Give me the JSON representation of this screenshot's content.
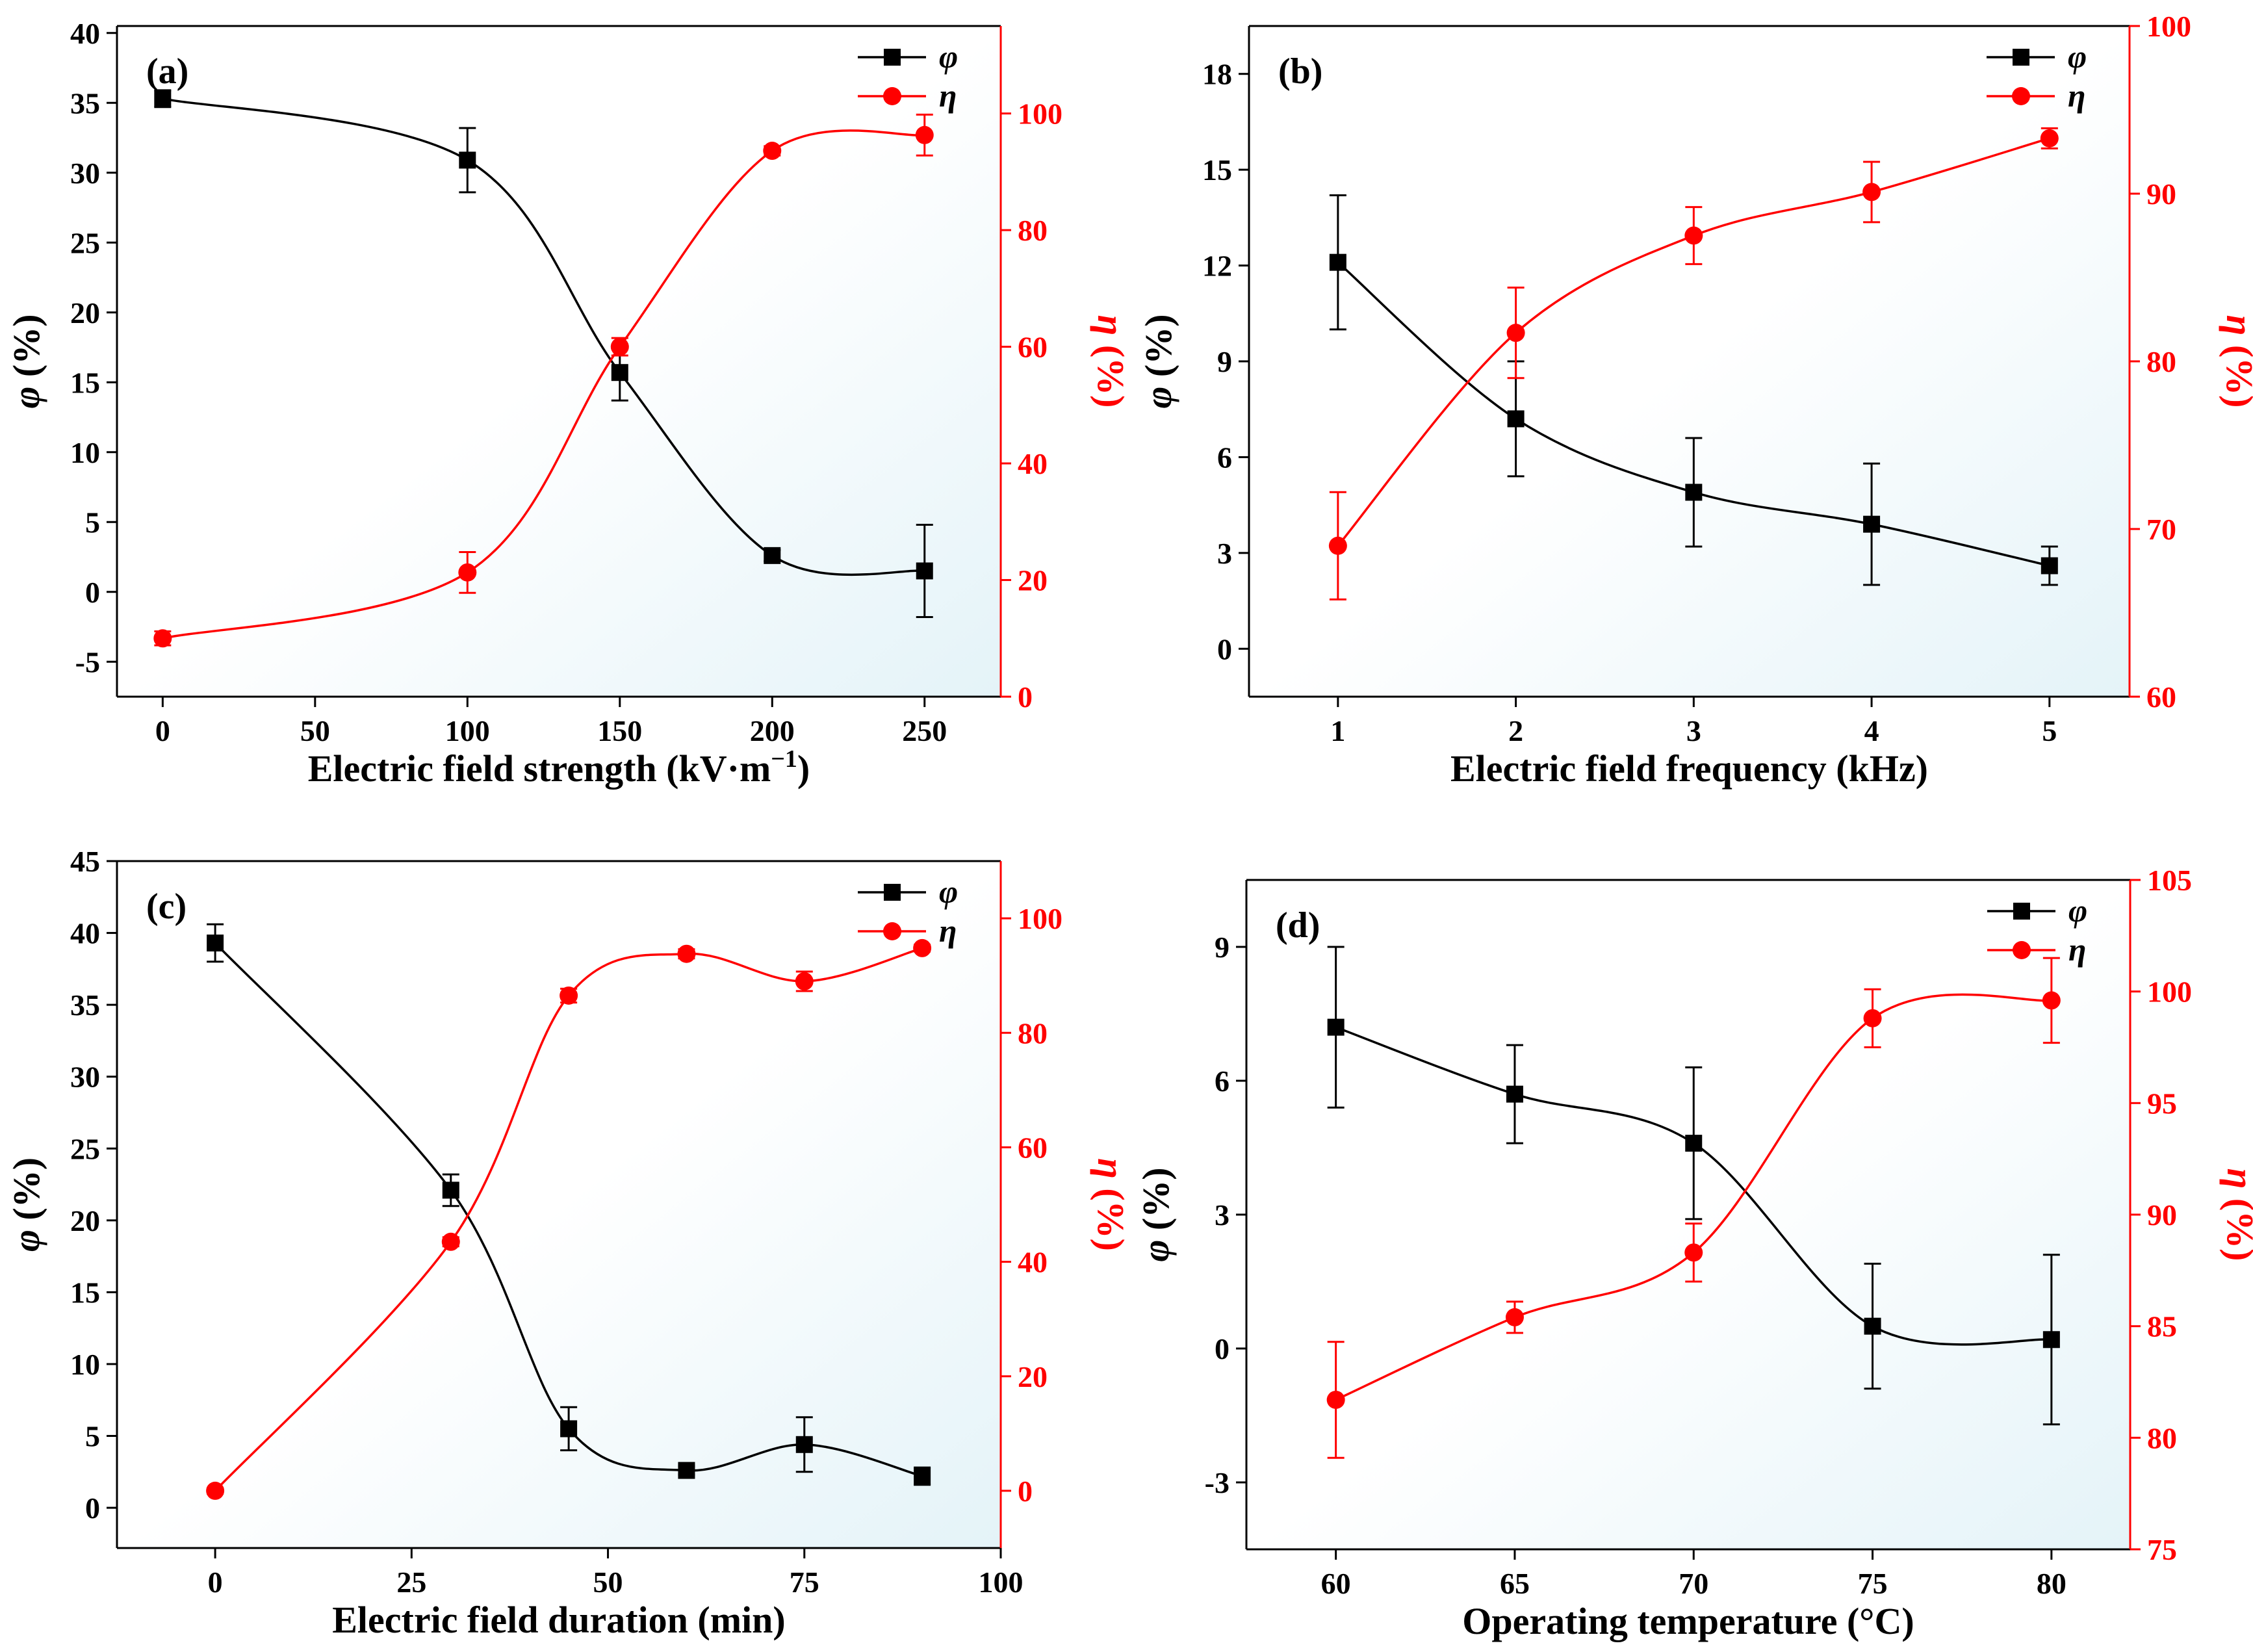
{
  "colors": {
    "phi": "#000000",
    "eta": "#ff0000",
    "background_tint": "#e4f3f8"
  },
  "chart_data": [
    {
      "type": "line",
      "panel": "(a)",
      "xlabel": "Electric field strength (kV·m",
      "xlabel_sup": "−1",
      "xlabel_close": ")",
      "ylabel_left": {
        "symbol": "φ",
        "unit": " (%)"
      },
      "ylabel_right": {
        "symbol": "η",
        "unit": " (%)"
      },
      "xlim": [
        -15,
        275
      ],
      "xticks": [
        0,
        50,
        100,
        150,
        200,
        250
      ],
      "ylim_left": [
        -7.5,
        40.5
      ],
      "yticks_left": [
        -5,
        0,
        5,
        10,
        15,
        20,
        25,
        30,
        35,
        40
      ],
      "ylim_right": [
        0,
        115
      ],
      "yticks_right": [
        0,
        20,
        40,
        60,
        80,
        100
      ],
      "series": [
        {
          "name": "φ",
          "axis": "left",
          "marker": "square",
          "x": [
            0,
            100,
            150,
            200,
            250
          ],
          "values": [
            35.3,
            30.9,
            15.7,
            2.6,
            1.5
          ],
          "errors": [
            0.6,
            2.3,
            2.0,
            0.4,
            3.3
          ]
        },
        {
          "name": "η",
          "axis": "right",
          "marker": "circle",
          "x": [
            0,
            100,
            150,
            200,
            250
          ],
          "values": [
            10.0,
            21.3,
            60.0,
            93.6,
            96.3
          ],
          "errors": [
            1.2,
            3.5,
            1.5,
            0.8,
            3.5
          ]
        }
      ]
    },
    {
      "type": "line",
      "panel": "(b)",
      "xlabel": "Electric field frequency (kHz)",
      "ylabel_left": {
        "symbol": "φ",
        "unit": " (%)"
      },
      "ylabel_right": {
        "symbol": "η",
        "unit": " (%)"
      },
      "xlim": [
        0.5,
        5.45
      ],
      "xticks": [
        1,
        2,
        3,
        4,
        5
      ],
      "ylim_left": [
        -1.5,
        19.5
      ],
      "yticks_left": [
        0,
        3,
        6,
        9,
        12,
        15,
        18
      ],
      "ylim_right": [
        60,
        100
      ],
      "yticks_right": [
        60,
        70,
        80,
        90,
        100
      ],
      "series": [
        {
          "name": "φ",
          "axis": "left",
          "marker": "square",
          "x": [
            1,
            2,
            3,
            4,
            5
          ],
          "values": [
            12.1,
            7.2,
            4.9,
            3.9,
            2.6
          ],
          "errors": [
            2.1,
            1.8,
            1.7,
            1.9,
            0.6
          ]
        },
        {
          "name": "η",
          "axis": "right",
          "marker": "circle",
          "x": [
            1,
            2,
            3,
            4,
            5
          ],
          "values": [
            69.0,
            81.7,
            87.5,
            90.1,
            93.3
          ],
          "errors": [
            3.2,
            2.7,
            1.7,
            1.8,
            0.6
          ]
        }
      ]
    },
    {
      "type": "line",
      "panel": "(c)",
      "xlabel": "Electric field duration (min)",
      "ylabel_left": {
        "symbol": "φ",
        "unit": " (%)"
      },
      "ylabel_right": {
        "symbol": "η",
        "unit": " (%)"
      },
      "xlim": [
        -12.5,
        100
      ],
      "xticks": [
        0,
        25,
        50,
        75,
        100
      ],
      "ylim_left": [
        -2.8,
        45
      ],
      "yticks_left": [
        0,
        5,
        10,
        15,
        20,
        25,
        30,
        35,
        40,
        45
      ],
      "ylim_right": [
        -10,
        110
      ],
      "yticks_right": [
        0,
        20,
        40,
        60,
        80,
        100
      ],
      "series": [
        {
          "name": "φ",
          "axis": "left",
          "marker": "square",
          "x": [
            0,
            30,
            45,
            60,
            75,
            90
          ],
          "values": [
            39.3,
            22.1,
            5.5,
            2.6,
            4.4,
            2.2
          ],
          "errors": [
            1.3,
            1.1,
            1.5,
            0.3,
            1.9,
            0.6
          ]
        },
        {
          "name": "η",
          "axis": "right",
          "marker": "circle",
          "x": [
            0,
            30,
            45,
            60,
            75,
            90
          ],
          "values": [
            0.0,
            43.5,
            86.5,
            93.8,
            89.0,
            94.8
          ],
          "errors": [
            0.5,
            0.8,
            1.2,
            0.8,
            1.7,
            0.6
          ]
        }
      ]
    },
    {
      "type": "line",
      "panel": "(d)",
      "xlabel": "Operating temperature (°C)",
      "ylabel_left": {
        "symbol": "φ",
        "unit": " (%)"
      },
      "ylabel_right": {
        "symbol": "η",
        "unit": " (%)"
      },
      "xlim": [
        57.5,
        82.2
      ],
      "xticks": [
        60,
        65,
        70,
        75,
        80
      ],
      "ylim_left": [
        -4.5,
        10.5
      ],
      "yticks_left": [
        -3,
        0,
        3,
        6,
        9
      ],
      "ylim_right": [
        75,
        105
      ],
      "yticks_right": [
        75,
        80,
        85,
        90,
        95,
        100,
        105
      ],
      "series": [
        {
          "name": "φ",
          "axis": "left",
          "marker": "square",
          "x": [
            60,
            65,
            70,
            75,
            80
          ],
          "values": [
            7.2,
            5.7,
            4.6,
            0.5,
            0.2
          ],
          "errors": [
            1.8,
            1.1,
            1.7,
            1.4,
            1.9
          ]
        },
        {
          "name": "η",
          "axis": "right",
          "marker": "circle",
          "x": [
            60,
            65,
            70,
            75,
            80
          ],
          "values": [
            81.7,
            85.4,
            88.3,
            98.8,
            99.6
          ],
          "errors": [
            2.6,
            0.7,
            1.3,
            1.3,
            1.9
          ]
        }
      ]
    }
  ]
}
